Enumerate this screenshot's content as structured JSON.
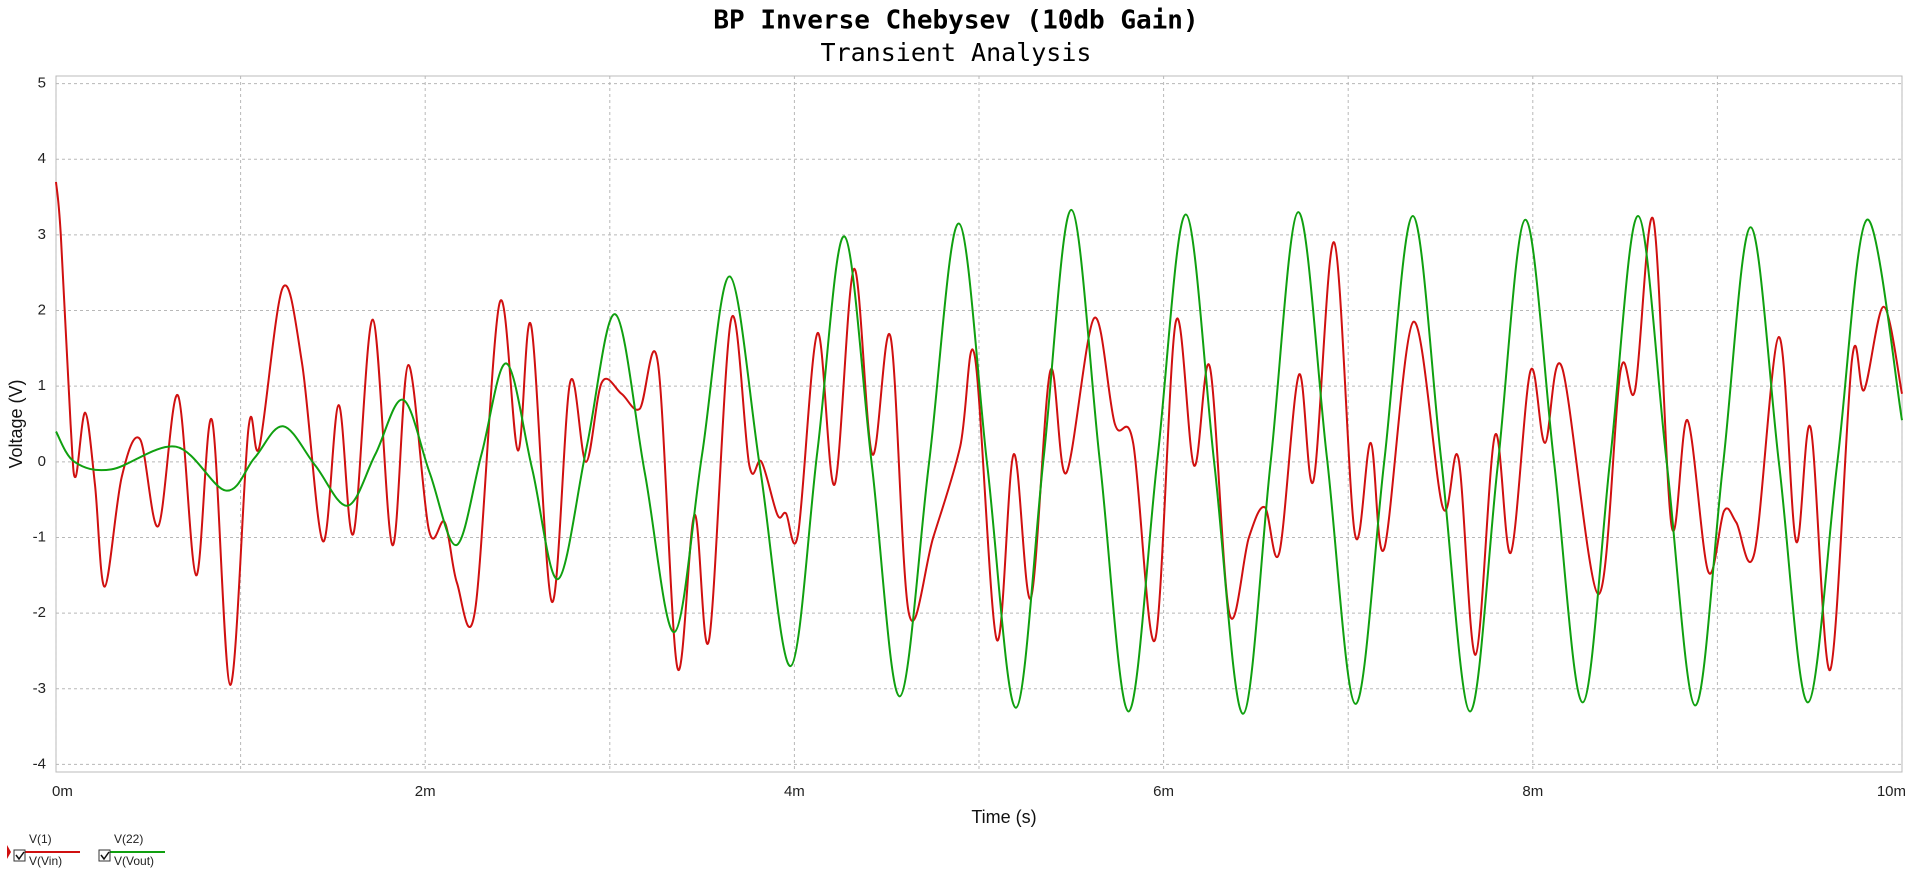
{
  "chart_data": {
    "type": "line",
    "title": "BP Inverse Chebysev (10db Gain)",
    "subtitle": "Transient Analysis",
    "x_label": "Time (s)",
    "y_label": "Voltage (V)",
    "xlim": [
      0,
      0.01
    ],
    "ylim": [
      -4.1,
      5.1
    ],
    "xticks": [
      {
        "value": 0,
        "label": "0m"
      },
      {
        "value": 0.002,
        "label": "2m"
      },
      {
        "value": 0.004,
        "label": "4m"
      },
      {
        "value": 0.006,
        "label": "6m"
      },
      {
        "value": 0.008,
        "label": "8m"
      },
      {
        "value": 0.01,
        "label": "10m"
      }
    ],
    "xminor": [
      0.001,
      0.003,
      0.005,
      0.007,
      0.009
    ],
    "yticks": [
      -4,
      -3,
      -2,
      -1,
      0,
      1,
      2,
      3,
      4,
      5
    ],
    "grid": true,
    "legend": "bottom-left",
    "series": [
      {
        "name": "V(1)",
        "alias": "V(Vin)",
        "color": "#d01010",
        "x": [
          0,
          2.6e-05,
          7.9e-05,
          0.000106,
          0.000158,
          0.000211,
          0.000264,
          0.000356,
          0.000455,
          0.000554,
          0.00066,
          0.000759,
          0.000845,
          0.000944,
          0.001043,
          0.001102,
          0.001228,
          0.001333,
          0.001446,
          0.001531,
          0.001611,
          0.001716,
          0.001822,
          0.001908,
          0.00202,
          0.002106,
          0.002172,
          0.002271,
          0.002403,
          0.002502,
          0.002574,
          0.002686,
          0.002785,
          0.002871,
          0.002957,
          0.003063,
          0.003162,
          0.003261,
          0.003366,
          0.003459,
          0.003538,
          0.003657,
          0.003756,
          0.003822,
          0.003908,
          0.003954,
          0.00402,
          0.004125,
          0.004218,
          0.004323,
          0.004422,
          0.004521,
          0.00462,
          0.004752,
          0.004898,
          0.004977,
          0.005096,
          0.005188,
          0.005281,
          0.005386,
          0.005472,
          0.005624,
          0.005736,
          0.005835,
          0.005954,
          0.006066,
          0.006165,
          0.006251,
          0.006356,
          0.006462,
          0.006548,
          0.006627,
          0.006733,
          0.006812,
          0.006924,
          0.007036,
          0.007122,
          0.007195,
          0.007353,
          0.007512,
          0.007597,
          0.00769,
          0.007795,
          0.007881,
          0.007987,
          0.008066,
          0.008158,
          0.008356,
          0.008475,
          0.008554,
          0.008653,
          0.008752,
          0.008838,
          0.00895,
          0.009036,
          0.009102,
          0.009201,
          0.009333,
          0.009426,
          0.009505,
          0.009611,
          0.009729,
          0.009795,
          0.009901,
          0.01
        ],
        "values": [
          3.7,
          3.0,
          0.5,
          -0.2,
          0.65,
          -0.3,
          -1.65,
          -0.2,
          0.3,
          -0.85,
          0.88,
          -1.5,
          0.55,
          -2.95,
          0.45,
          0.2,
          2.3,
          1.3,
          -1.05,
          0.75,
          -0.95,
          1.88,
          -1.1,
          1.28,
          -0.9,
          -0.8,
          -1.6,
          -1.95,
          2.1,
          0.15,
          1.8,
          -1.85,
          1.05,
          0.0,
          1.05,
          0.9,
          0.7,
          1.3,
          -2.72,
          -0.7,
          -2.35,
          1.88,
          -0.05,
          0.0,
          -0.7,
          -0.68,
          -0.95,
          1.7,
          -0.3,
          2.55,
          0.1,
          1.65,
          -2.0,
          -1.0,
          0.2,
          1.4,
          -2.35,
          0.1,
          -1.8,
          1.2,
          -0.15,
          1.9,
          0.5,
          0.25,
          -2.35,
          1.85,
          -0.05,
          1.25,
          -2.0,
          -1.0,
          -0.6,
          -1.2,
          1.15,
          -0.25,
          2.9,
          -0.95,
          0.25,
          -1.15,
          1.85,
          -0.6,
          0.05,
          -2.55,
          0.35,
          -1.2,
          1.2,
          0.25,
          1.25,
          -1.75,
          1.2,
          0.95,
          3.2,
          -0.85,
          0.55,
          -1.45,
          -0.65,
          -0.8,
          -1.2,
          1.65,
          -1.05,
          0.45,
          -2.75,
          1.35,
          0.95,
          2.05,
          0.9
        ]
      },
      {
        "name": "V(22)",
        "alias": "V(Vout)",
        "color": "#10a010",
        "x": [
          0,
          0.0001,
          0.0003,
          0.00065,
          0.00092,
          0.001075,
          0.00123,
          0.001405,
          0.00158,
          0.00173,
          0.00188,
          0.002025,
          0.00217,
          0.002305,
          0.00244,
          0.00258,
          0.00272,
          0.002875,
          0.00303,
          0.00319,
          0.00335,
          0.0035,
          0.00365,
          0.003815,
          0.00398,
          0.004125,
          0.00427,
          0.00442,
          0.00457,
          0.00473,
          0.00489,
          0.005045,
          0.0052,
          0.00535,
          0.0055,
          0.005655,
          0.00581,
          0.005965,
          0.00612,
          0.006275,
          0.00643,
          0.00658,
          0.00673,
          0.006885,
          0.00704,
          0.007195,
          0.00735,
          0.007505,
          0.00766,
          0.00781,
          0.00796,
          0.008115,
          0.00827,
          0.00842,
          0.00857,
          0.008725,
          0.00888,
          0.00903,
          0.00918,
          0.009335,
          0.00949,
          0.00965,
          0.00981,
          0.01
        ],
        "values": [
          0.4,
          0.0,
          -0.1,
          0.2,
          -0.38,
          0.05,
          0.47,
          -0.05,
          -0.58,
          0.1,
          0.82,
          -0.15,
          -1.1,
          0.1,
          1.3,
          -0.1,
          -1.55,
          0.2,
          1.95,
          -0.15,
          -2.25,
          0.1,
          2.45,
          -0.1,
          -2.7,
          0.15,
          2.98,
          -0.05,
          -3.1,
          0.0,
          3.15,
          -0.05,
          -3.25,
          0.05,
          3.33,
          0.0,
          -3.3,
          0.0,
          3.27,
          -0.03,
          -3.33,
          0.0,
          3.3,
          0.05,
          -3.2,
          0.0,
          3.25,
          0.0,
          -3.3,
          -0.05,
          3.2,
          0.0,
          -3.18,
          0.05,
          3.25,
          0.0,
          -3.22,
          -0.05,
          3.1,
          -0.05,
          -3.18,
          0.0,
          3.2,
          0.55
        ]
      }
    ]
  }
}
